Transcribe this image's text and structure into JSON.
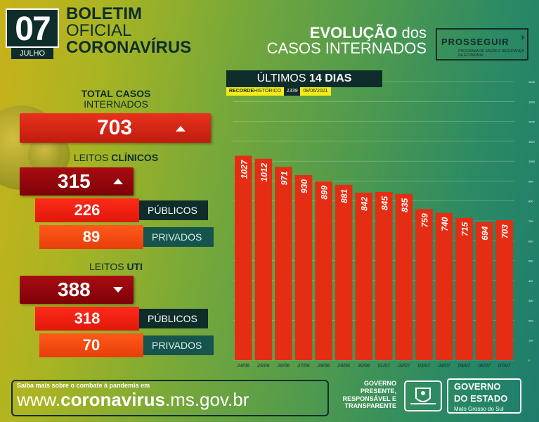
{
  "header": {
    "day": "07",
    "month": "JULHO",
    "line1": "BOLETIM",
    "line2": "OFICIAL",
    "line3": "CORONAVÍRUS",
    "evo_bold": "EVOLUÇÃO",
    "evo_rest": " dos",
    "evo_line2": "CASOS INTERNADOS",
    "prosseguir": "PROSSEGUIR",
    "prosseguir_sub": "PROGRAMA DE SAÚDE E SEGURANÇA DA ECONOMIA"
  },
  "totals": {
    "total_label_bold": "TOTAL CASOS",
    "total_label": "INTERNADOS",
    "total_value": "703",
    "clinicos_label": "LEITOS ",
    "clinicos_label_bold": "CLÍNICOS",
    "clinicos_value": "315",
    "clinicos_publicos": "226",
    "clinicos_privados": "89",
    "uti_label": "LEITOS ",
    "uti_label_bold": "UTI",
    "uti_value": "388",
    "uti_publicos": "318",
    "uti_privados": "70",
    "publicos_tag": "PÚBLICOS",
    "privados_tag": "PRIVADOS"
  },
  "chart_head": {
    "title": "ÚLTIMOS ",
    "title_bold": "14 DIAS",
    "recorde_label": "RECORDE ",
    "recorde_label2": "HISTÓRICO",
    "recorde_value": "1339",
    "recorde_date": "08/06/2021"
  },
  "chart_data": {
    "type": "bar",
    "categories": [
      "24/06",
      "25/06",
      "26/06",
      "27/06",
      "28/06",
      "29/06",
      "30/06",
      "01/07",
      "02/07",
      "03/07",
      "04/07",
      "05/07",
      "06/07",
      "07/07"
    ],
    "values": [
      1027,
      1012,
      971,
      930,
      899,
      881,
      842,
      845,
      835,
      759,
      740,
      715,
      694,
      703
    ],
    "ylim": [
      0,
      1400
    ],
    "yticks": [
      0,
      100,
      200,
      300,
      400,
      500,
      600,
      700,
      800,
      900,
      1000,
      1100,
      1200,
      1300,
      1400
    ],
    "grid": true,
    "bar_color": "#e52d14"
  },
  "footer": {
    "small": "Saiba mais sobre o combate à pandemia em",
    "url_pre": "www.",
    "url_bold": "coronavirus",
    "url_post": ".ms.gov.br",
    "gov_slogan": "GOVERNO PRESENTE, RESPONSÁVEL E TRANSPARENTE",
    "gov_title1": "GOVERNO",
    "gov_title2": "DO ESTADO",
    "gov_sub": "Mato Grosso do Sul"
  }
}
